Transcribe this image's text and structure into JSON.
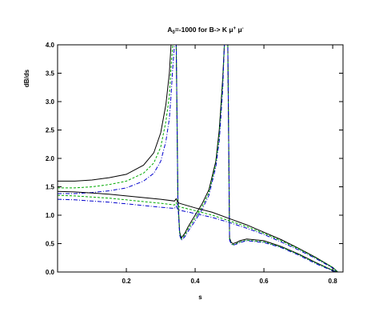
{
  "chart_data": {
    "type": "line",
    "title": {
      "main": "A",
      "sub": "0",
      "rest": "=-1000 for  B-> K μ",
      "sup1": "+",
      "mid": " μ",
      "sup2": "-"
    },
    "xlabel": "s",
    "ylabel": "dB/ds",
    "xlim": [
      0.0,
      0.83
    ],
    "ylim": [
      0.0,
      4.0
    ],
    "xticks": [
      0.2,
      0.4,
      0.6,
      0.8
    ],
    "xtick_labels": [
      "0.2",
      "0.4",
      "0.6",
      "0.8"
    ],
    "yticks": [
      0.0,
      0.5,
      1.0,
      1.5,
      2.0,
      2.5,
      3.0,
      3.5,
      4.0
    ],
    "ytick_labels": [
      "0.0",
      "0.5",
      "1.0",
      "1.5",
      "2.0",
      "2.5",
      "3.0",
      "3.5",
      "4.0"
    ],
    "grid": false,
    "series": [
      {
        "color": "#000000",
        "dash": "none",
        "x": [
          0.0,
          0.05,
          0.1,
          0.15,
          0.2,
          0.25,
          0.28,
          0.3,
          0.315,
          0.325,
          0.33,
          0.335,
          0.34,
          0.345,
          0.35,
          0.355,
          0.36,
          0.37,
          0.38,
          0.4,
          0.42,
          0.44,
          0.46,
          0.47,
          0.48,
          0.485,
          0.49,
          0.495,
          0.5,
          0.505,
          0.51,
          0.52,
          0.53,
          0.55,
          0.6,
          0.65,
          0.7,
          0.75,
          0.8,
          0.815
        ],
        "y": [
          1.6,
          1.6,
          1.62,
          1.66,
          1.72,
          1.88,
          2.1,
          2.45,
          2.95,
          3.5,
          4.0,
          4.0,
          4.0,
          4.0,
          1.3,
          0.7,
          0.6,
          0.68,
          0.8,
          1.0,
          1.2,
          1.45,
          1.95,
          2.5,
          3.4,
          4.0,
          4.0,
          4.0,
          0.6,
          0.52,
          0.5,
          0.52,
          0.55,
          0.58,
          0.55,
          0.45,
          0.32,
          0.17,
          0.03,
          0.0
        ]
      },
      {
        "color": "#00aa00",
        "dash": "3,2",
        "x": [
          0.0,
          0.05,
          0.1,
          0.15,
          0.2,
          0.25,
          0.28,
          0.3,
          0.315,
          0.325,
          0.33,
          0.335,
          0.34,
          0.345,
          0.35,
          0.355,
          0.36,
          0.37,
          0.38,
          0.4,
          0.42,
          0.44,
          0.46,
          0.47,
          0.48,
          0.485,
          0.49,
          0.495,
          0.5,
          0.505,
          0.51,
          0.52,
          0.53,
          0.55,
          0.6,
          0.65,
          0.7,
          0.75,
          0.8,
          0.815
        ],
        "y": [
          1.48,
          1.48,
          1.5,
          1.54,
          1.6,
          1.74,
          1.92,
          2.2,
          2.65,
          3.1,
          3.6,
          4.0,
          4.0,
          4.0,
          1.25,
          0.68,
          0.58,
          0.65,
          0.76,
          0.95,
          1.15,
          1.4,
          1.9,
          2.4,
          3.3,
          4.0,
          4.0,
          4.0,
          0.58,
          0.5,
          0.48,
          0.5,
          0.53,
          0.56,
          0.53,
          0.44,
          0.31,
          0.16,
          0.03,
          0.0
        ]
      },
      {
        "color": "#0000cc",
        "dash": "5,2,1,2",
        "x": [
          0.0,
          0.05,
          0.1,
          0.15,
          0.2,
          0.25,
          0.28,
          0.3,
          0.315,
          0.325,
          0.33,
          0.335,
          0.34,
          0.345,
          0.35,
          0.355,
          0.36,
          0.37,
          0.38,
          0.4,
          0.42,
          0.44,
          0.46,
          0.47,
          0.48,
          0.485,
          0.49,
          0.495,
          0.5,
          0.505,
          0.51,
          0.52,
          0.53,
          0.55,
          0.6,
          0.65,
          0.7,
          0.75,
          0.8,
          0.815
        ],
        "y": [
          1.38,
          1.38,
          1.4,
          1.43,
          1.48,
          1.6,
          1.74,
          1.95,
          2.3,
          2.7,
          3.1,
          3.6,
          4.0,
          4.0,
          1.2,
          0.65,
          0.56,
          0.62,
          0.72,
          0.9,
          1.1,
          1.35,
          1.85,
          2.3,
          3.2,
          4.0,
          4.0,
          4.0,
          0.56,
          0.49,
          0.47,
          0.49,
          0.52,
          0.55,
          0.52,
          0.43,
          0.3,
          0.15,
          0.02,
          0.0
        ]
      },
      {
        "color": "#000000",
        "dash": "none",
        "x": [
          0.0,
          0.05,
          0.1,
          0.15,
          0.2,
          0.25,
          0.3,
          0.34,
          0.345,
          0.35,
          0.36,
          0.4,
          0.45,
          0.5,
          0.55,
          0.6,
          0.65,
          0.7,
          0.75,
          0.8,
          0.815
        ],
        "y": [
          1.42,
          1.41,
          1.39,
          1.37,
          1.34,
          1.31,
          1.28,
          1.25,
          1.29,
          1.22,
          1.2,
          1.13,
          1.05,
          0.94,
          0.83,
          0.7,
          0.57,
          0.42,
          0.26,
          0.08,
          0.0
        ]
      },
      {
        "color": "#00aa00",
        "dash": "3,2",
        "x": [
          0.0,
          0.05,
          0.1,
          0.15,
          0.2,
          0.25,
          0.3,
          0.34,
          0.345,
          0.35,
          0.36,
          0.4,
          0.45,
          0.5,
          0.55,
          0.6,
          0.65,
          0.7,
          0.75,
          0.8,
          0.815
        ],
        "y": [
          1.35,
          1.34,
          1.32,
          1.3,
          1.27,
          1.24,
          1.21,
          1.18,
          1.22,
          1.16,
          1.14,
          1.08,
          1.0,
          0.9,
          0.8,
          0.68,
          0.55,
          0.41,
          0.25,
          0.08,
          0.0
        ]
      },
      {
        "color": "#0000cc",
        "dash": "5,2,1,2",
        "x": [
          0.0,
          0.05,
          0.1,
          0.15,
          0.2,
          0.25,
          0.3,
          0.34,
          0.345,
          0.35,
          0.36,
          0.4,
          0.45,
          0.5,
          0.55,
          0.6,
          0.65,
          0.7,
          0.75,
          0.8,
          0.815
        ],
        "y": [
          1.28,
          1.27,
          1.25,
          1.23,
          1.2,
          1.17,
          1.14,
          1.12,
          1.16,
          1.1,
          1.08,
          1.03,
          0.96,
          0.87,
          0.77,
          0.66,
          0.53,
          0.39,
          0.24,
          0.07,
          0.0
        ]
      }
    ]
  }
}
